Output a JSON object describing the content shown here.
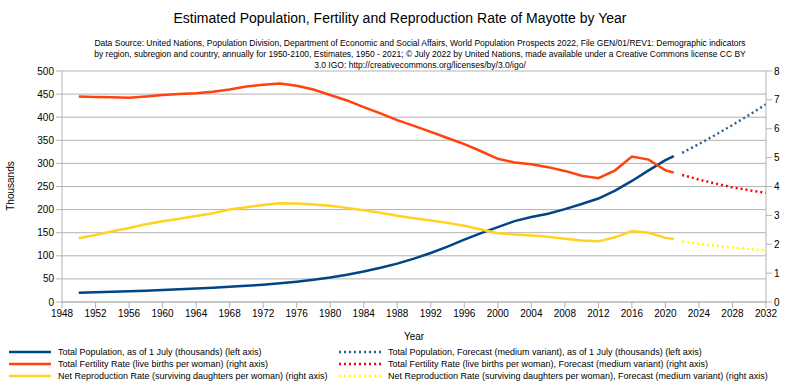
{
  "chart_data": {
    "type": "line",
    "title": "Estimated Population, Fertility and Reproduction Rate of Mayotte by Year",
    "subtitle": [
      "Data Source: United Nations, Population Division, Department of Economic and Social Affairs, World Population Prospects 2022, File GEN/01/REV1: Demographic indicators",
      "by region, subregion and country, annually for 1950-2100, Estimates, 1950 - 2021; © July 2022 by United Nations, made available under a Creative Commons license CC BY",
      "3.0 IGO: http://creativecommons.org/licenses/by/3.0/igo/"
    ],
    "x_label": "Year",
    "y_label": "Thousands",
    "x": [
      1950,
      1952,
      1954,
      1956,
      1958,
      1960,
      1962,
      1964,
      1966,
      1968,
      1970,
      1972,
      1974,
      1976,
      1978,
      1980,
      1982,
      1984,
      1986,
      1988,
      1990,
      1992,
      1994,
      1996,
      1998,
      2000,
      2002,
      2004,
      2006,
      2008,
      2010,
      2012,
      2014,
      2016,
      2018,
      2020,
      2021,
      2022,
      2024,
      2026,
      2028,
      2030,
      2032
    ],
    "xlim": [
      1948,
      2032
    ],
    "xticks": [
      1948,
      1952,
      1956,
      1960,
      1964,
      1968,
      1972,
      1976,
      1980,
      1984,
      1988,
      1992,
      1996,
      2000,
      2004,
      2008,
      2012,
      2016,
      2020,
      2024,
      2028,
      2032
    ],
    "ylim": [
      0,
      500
    ],
    "yticks": [
      0,
      50,
      100,
      150,
      200,
      250,
      300,
      350,
      400,
      450,
      500
    ],
    "y2lim": [
      0,
      8
    ],
    "y2ticks": [
      0,
      1,
      2,
      3,
      4,
      5,
      6,
      7,
      8
    ],
    "grid": true,
    "legend": "bottom",
    "series": [
      {
        "name": "Total Population, as of 1 July (thousands) (left axis)",
        "color": "#004586",
        "line_style": "solid",
        "axis": "y",
        "values": [
          20,
          21,
          22,
          23,
          24.5,
          26,
          27.5,
          29,
          31,
          33,
          35,
          37.5,
          40.5,
          44,
          48,
          53,
          59,
          66,
          74,
          83,
          94,
          106,
          120,
          135,
          149,
          162,
          175,
          184,
          191,
          201,
          212,
          224,
          241,
          262,
          285,
          307,
          316,
          null,
          null,
          null,
          null,
          null,
          null
        ]
      },
      {
        "name": "Total Fertility Rate (live births per woman) (right axis)",
        "color": "#ff420e",
        "line_style": "solid",
        "axis": "y2",
        "values": [
          7.12,
          7.1,
          7.09,
          7.07,
          7.12,
          7.17,
          7.2,
          7.23,
          7.28,
          7.36,
          7.46,
          7.52,
          7.57,
          7.49,
          7.36,
          7.17,
          6.98,
          6.75,
          6.53,
          6.3,
          6.1,
          5.89,
          5.68,
          5.47,
          5.22,
          4.96,
          4.83,
          4.77,
          4.67,
          4.54,
          4.37,
          4.29,
          4.56,
          5.04,
          4.93,
          4.56,
          4.48,
          null,
          null,
          null,
          null,
          null,
          null
        ]
      },
      {
        "name": "Net Reproduction Rate (surviving daughters per woman) (right axis)",
        "color": "#ffd320",
        "line_style": "solid",
        "axis": "y2",
        "values": [
          2.21,
          2.32,
          2.45,
          2.56,
          2.69,
          2.8,
          2.88,
          2.98,
          3.07,
          3.2,
          3.28,
          3.36,
          3.42,
          3.41,
          3.38,
          3.33,
          3.26,
          3.18,
          3.09,
          2.99,
          2.9,
          2.82,
          2.74,
          2.64,
          2.51,
          2.38,
          2.34,
          2.3,
          2.26,
          2.19,
          2.13,
          2.1,
          2.24,
          2.46,
          2.4,
          2.22,
          2.18,
          null,
          null,
          null,
          null,
          null,
          null
        ]
      },
      {
        "name": "Total Population, Forecast (medium variant), as of 1 July (thousands) (left axis)",
        "color": "#2a6099",
        "line_style": "dotted",
        "axis": "y",
        "values": [
          null,
          null,
          null,
          null,
          null,
          null,
          null,
          null,
          null,
          null,
          null,
          null,
          null,
          null,
          null,
          null,
          null,
          null,
          null,
          null,
          null,
          null,
          null,
          null,
          null,
          null,
          null,
          null,
          null,
          null,
          null,
          null,
          null,
          null,
          null,
          null,
          null,
          323,
          342,
          362,
          383,
          405,
          428
        ]
      },
      {
        "name": "Total Fertility Rate (live births per woman), Forecast (medium variant) (right axis)",
        "color": "#ff0000",
        "line_style": "dotted",
        "axis": "y2",
        "values": [
          null,
          null,
          null,
          null,
          null,
          null,
          null,
          null,
          null,
          null,
          null,
          null,
          null,
          null,
          null,
          null,
          null,
          null,
          null,
          null,
          null,
          null,
          null,
          null,
          null,
          null,
          null,
          null,
          null,
          null,
          null,
          null,
          null,
          null,
          null,
          null,
          null,
          4.4,
          4.24,
          4.1,
          3.97,
          3.87,
          3.78
        ]
      },
      {
        "name": "Net Reproduction Rate (surviving daughters per woman), Forecast (medium variant) (right axis)",
        "color": "#ffff00",
        "line_style": "dotted",
        "axis": "y2",
        "values": [
          null,
          null,
          null,
          null,
          null,
          null,
          null,
          null,
          null,
          null,
          null,
          null,
          null,
          null,
          null,
          null,
          null,
          null,
          null,
          null,
          null,
          null,
          null,
          null,
          null,
          null,
          null,
          null,
          null,
          null,
          null,
          null,
          null,
          null,
          null,
          null,
          null,
          2.1,
          2.02,
          1.95,
          1.89,
          1.84,
          1.79
        ]
      }
    ]
  }
}
